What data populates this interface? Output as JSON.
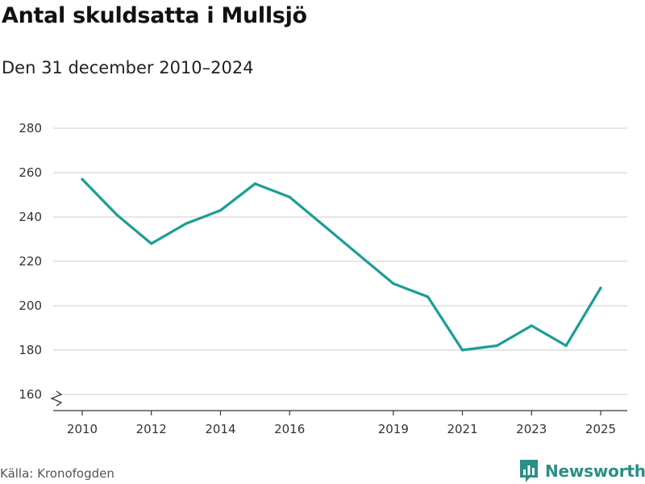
{
  "header": {
    "title": "Antal skuldsatta i Mullsjö",
    "subtitle": "Den 31 december 2010–2024"
  },
  "footer": {
    "source": "Källa: Kronofogden",
    "brand": "Newsworthy"
  },
  "colors": {
    "line": "#1a9e93",
    "grid": "#dddddd",
    "axis": "#333333",
    "brand": "#2a8f86"
  },
  "chart_data": {
    "type": "line",
    "title": "Antal skuldsatta i Mullsjö",
    "subtitle": "Den 31 december 2010–2024",
    "xlabel": "",
    "ylabel": "",
    "xlim": [
      2010,
      2025
    ],
    "ylim": [
      160,
      280
    ],
    "x_ticks": [
      2010,
      2012,
      2014,
      2016,
      2019,
      2021,
      2023,
      2025
    ],
    "y_ticks": [
      160,
      180,
      200,
      220,
      240,
      260,
      280
    ],
    "grid": true,
    "axis_break": true,
    "series": [
      {
        "name": "Antal skuldsatta",
        "x": [
          2010,
          2011,
          2012,
          2013,
          2014,
          2015,
          2016,
          2017,
          2018,
          2019,
          2020,
          2021,
          2022,
          2023,
          2024,
          2025
        ],
        "values": [
          257,
          241,
          228,
          237,
          243,
          255,
          249,
          236,
          223,
          210,
          204,
          180,
          182,
          191,
          182,
          208
        ]
      }
    ]
  }
}
